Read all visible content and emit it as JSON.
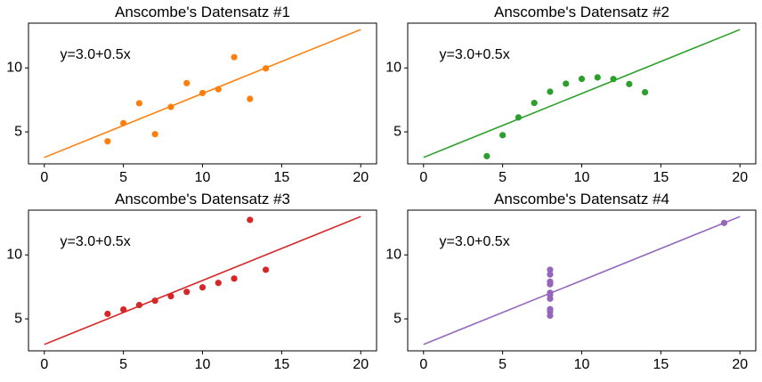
{
  "chart_data": [
    {
      "type": "scatter",
      "title": "Anscombe's Datensatz #1",
      "annotation": "y=3.0+0.5x",
      "color": "#ff7f0e",
      "xlim": [
        -1,
        21
      ],
      "ylim": [
        2.5,
        13.5
      ],
      "xticks": [
        0,
        5,
        10,
        15,
        20
      ],
      "yticks": [
        5,
        10
      ],
      "x": [
        10,
        8,
        13,
        9,
        11,
        14,
        6,
        4,
        12,
        7,
        5
      ],
      "y": [
        8.04,
        6.95,
        7.58,
        8.81,
        8.33,
        9.96,
        7.24,
        4.26,
        10.84,
        4.82,
        5.68
      ],
      "fit": {
        "intercept": 3.0,
        "slope": 0.5,
        "x_range": [
          0,
          20
        ]
      }
    },
    {
      "type": "scatter",
      "title": "Anscombe's Datensatz #2",
      "annotation": "y=3.0+0.5x",
      "color": "#2ca02c",
      "xlim": [
        -1,
        21
      ],
      "ylim": [
        2.5,
        13.5
      ],
      "xticks": [
        0,
        5,
        10,
        15,
        20
      ],
      "yticks": [
        5,
        10
      ],
      "x": [
        10,
        8,
        13,
        9,
        11,
        14,
        6,
        4,
        12,
        7,
        5
      ],
      "y": [
        9.14,
        8.14,
        8.74,
        8.77,
        9.26,
        8.1,
        6.13,
        3.1,
        9.13,
        7.26,
        4.74
      ],
      "fit": {
        "intercept": 3.0,
        "slope": 0.5,
        "x_range": [
          0,
          20
        ]
      }
    },
    {
      "type": "scatter",
      "title": "Anscombe's Datensatz #3",
      "annotation": "y=3.0+0.5x",
      "color": "#d62728",
      "xlim": [
        -1,
        21
      ],
      "ylim": [
        2.5,
        13.5
      ],
      "xticks": [
        0,
        5,
        10,
        15,
        20
      ],
      "yticks": [
        5,
        10
      ],
      "x": [
        10,
        8,
        13,
        9,
        11,
        14,
        6,
        4,
        12,
        7,
        5
      ],
      "y": [
        7.46,
        6.77,
        12.74,
        7.11,
        7.81,
        8.84,
        6.08,
        5.39,
        8.15,
        6.42,
        5.73
      ],
      "fit": {
        "intercept": 3.0,
        "slope": 0.5,
        "x_range": [
          0,
          20
        ]
      }
    },
    {
      "type": "scatter",
      "title": "Anscombe's Datensatz #4",
      "annotation": "y=3.0+0.5x",
      "color": "#9467bd",
      "xlim": [
        -1,
        21
      ],
      "ylim": [
        2.5,
        13.5
      ],
      "xticks": [
        0,
        5,
        10,
        15,
        20
      ],
      "yticks": [
        5,
        10
      ],
      "x": [
        8,
        8,
        8,
        8,
        8,
        8,
        8,
        19,
        8,
        8,
        8
      ],
      "y": [
        6.58,
        5.76,
        7.71,
        8.84,
        8.47,
        7.04,
        5.25,
        12.5,
        5.56,
        7.91,
        6.89
      ],
      "fit": {
        "intercept": 3.0,
        "slope": 0.5,
        "x_range": [
          0,
          20
        ]
      }
    }
  ]
}
